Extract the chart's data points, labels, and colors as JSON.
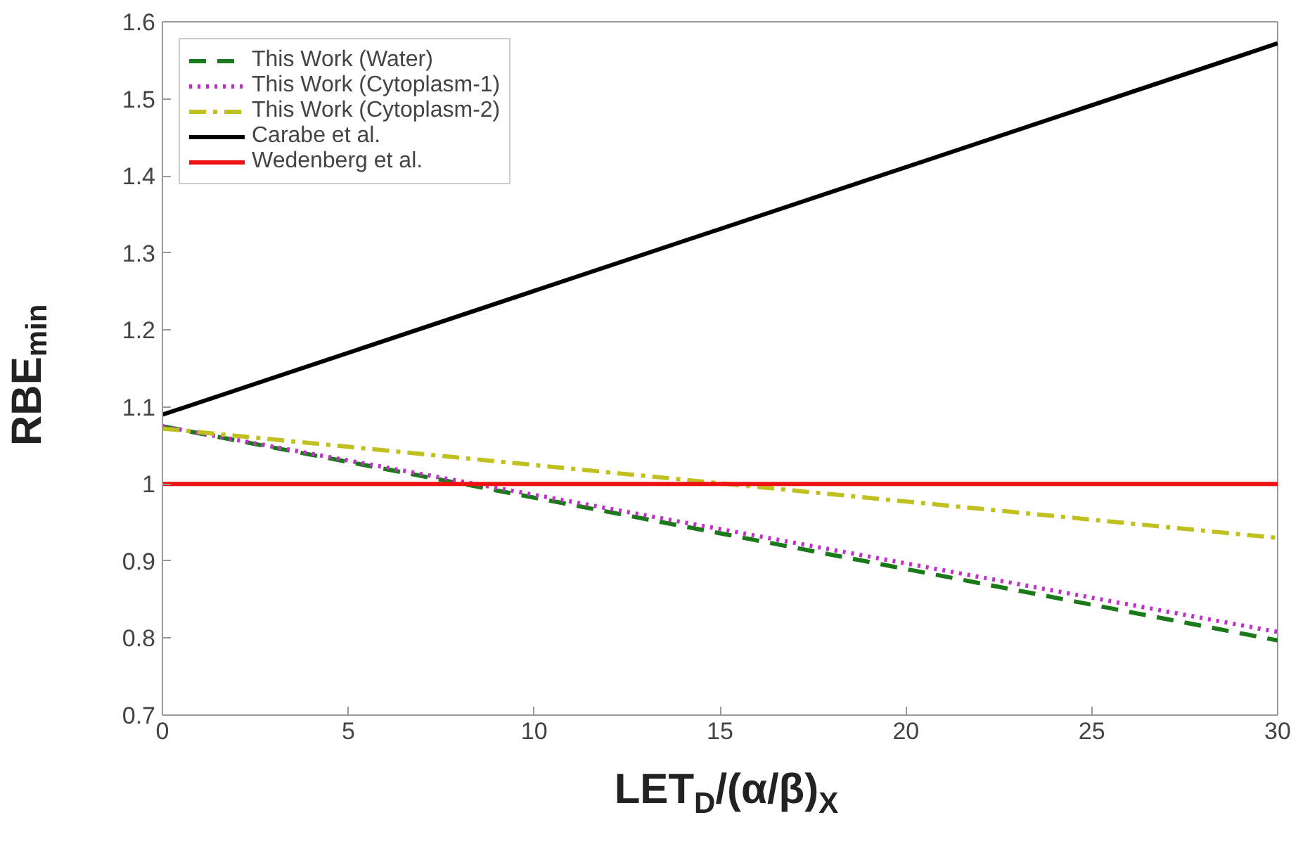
{
  "chart_data": {
    "type": "line",
    "xlabel": "LET$_{D}$/(α/β)$_{X}$",
    "ylabel": "RBE$_{min}$",
    "x": [
      0,
      30
    ],
    "series": [
      {
        "name": "This Work (Water)",
        "color": "#1a7a1a",
        "values": [
          1.075,
          0.797
        ],
        "line_style": "dashed"
      },
      {
        "name": "This Work (Cytoplasm-1)",
        "color": "#c030c8",
        "values": [
          1.075,
          0.808
        ],
        "line_style": "dotted"
      },
      {
        "name": "This Work (Cytoplasm-2)",
        "color": "#c0c020",
        "values": [
          1.072,
          0.93
        ],
        "line_style": "dashdot"
      },
      {
        "name": "Carabe et al.",
        "color": "#000000",
        "values": [
          1.09,
          1.572
        ],
        "line_style": "solid"
      },
      {
        "name": "Wedenberg et al.",
        "color": "#ee1111",
        "values": [
          1.0,
          1.0
        ],
        "line_style": "solid"
      }
    ],
    "xlim": [
      0,
      30
    ],
    "xticks": [
      0,
      5,
      10,
      15,
      20,
      25,
      30
    ],
    "ylim": [
      0.7,
      1.6
    ],
    "yticks": [
      0.7,
      0.8,
      0.9,
      1,
      1.1,
      1.2,
      1.3,
      1.4,
      1.5,
      1.6
    ],
    "grid": false,
    "legend": "top left",
    "marker": "none"
  }
}
